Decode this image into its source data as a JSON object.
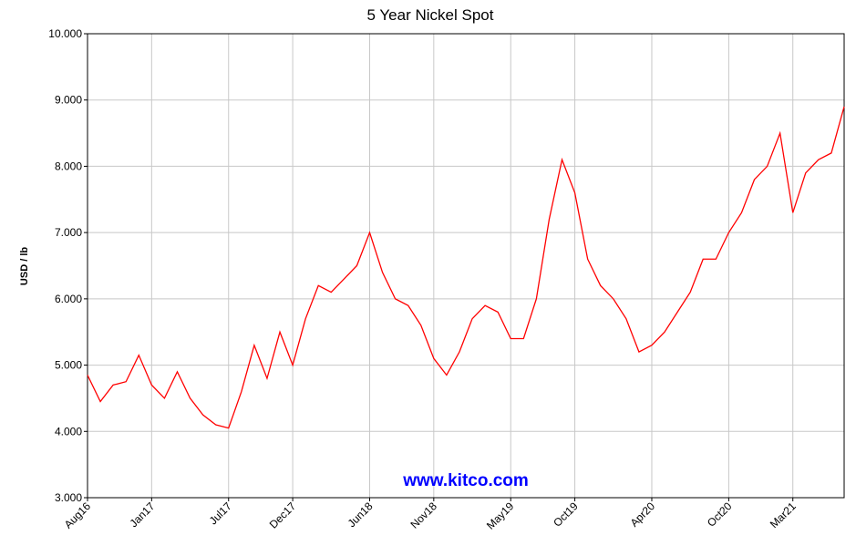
{
  "chart_data": {
    "type": "line",
    "title": "5 Year Nickel Spot",
    "y_label": "USD / lb",
    "watermark": "www.kitco.com",
    "x": [
      "2016-08",
      "2016-09",
      "2016-10",
      "2016-11",
      "2016-12",
      "2017-01",
      "2017-02",
      "2017-03",
      "2017-04",
      "2017-05",
      "2017-06",
      "2017-07",
      "2017-08",
      "2017-09",
      "2017-10",
      "2017-11",
      "2017-12",
      "2018-01",
      "2018-02",
      "2018-03",
      "2018-04",
      "2018-05",
      "2018-06",
      "2018-07",
      "2018-08",
      "2018-09",
      "2018-10",
      "2018-11",
      "2018-12",
      "2019-01",
      "2019-02",
      "2019-03",
      "2019-04",
      "2019-05",
      "2019-06",
      "2019-07",
      "2019-08",
      "2019-09",
      "2019-10",
      "2019-11",
      "2019-12",
      "2020-01",
      "2020-02",
      "2020-03",
      "2020-04",
      "2020-05",
      "2020-06",
      "2020-07",
      "2020-08",
      "2020-09",
      "2020-10",
      "2020-11",
      "2020-12",
      "2021-01",
      "2021-02",
      "2021-03",
      "2021-04",
      "2021-05",
      "2021-06",
      "2021-07"
    ],
    "series": [
      {
        "name": "Nickel",
        "color": "#ff0000",
        "values": [
          4.85,
          4.45,
          4.7,
          4.75,
          5.15,
          4.7,
          4.5,
          4.9,
          4.5,
          4.25,
          4.1,
          4.05,
          4.6,
          5.3,
          4.8,
          5.5,
          5.0,
          5.7,
          6.2,
          6.1,
          6.3,
          6.5,
          7.0,
          6.4,
          6.0,
          5.9,
          5.6,
          5.1,
          4.85,
          5.2,
          5.7,
          5.9,
          5.8,
          5.4,
          5.4,
          6.0,
          7.2,
          8.1,
          7.6,
          6.6,
          6.2,
          6.0,
          5.7,
          5.2,
          5.3,
          5.5,
          5.8,
          6.1,
          6.6,
          6.6,
          7.0,
          7.3,
          7.8,
          8.0,
          8.5,
          7.3,
          7.9,
          8.1,
          8.2,
          8.9
        ]
      }
    ],
    "xlim": [
      "2016-08",
      "2021-07"
    ],
    "xticks": [
      {
        "value": "2016-08",
        "label": "Aug16"
      },
      {
        "value": "2017-01",
        "label": "Jan17"
      },
      {
        "value": "2017-07",
        "label": "Jul17"
      },
      {
        "value": "2017-12",
        "label": "Dec17"
      },
      {
        "value": "2018-06",
        "label": "Jun18"
      },
      {
        "value": "2018-11",
        "label": "Nov18"
      },
      {
        "value": "2019-05",
        "label": "May19"
      },
      {
        "value": "2019-10",
        "label": "Oct19"
      },
      {
        "value": "2020-04",
        "label": "Apr20"
      },
      {
        "value": "2020-10",
        "label": "Oct20"
      },
      {
        "value": "2021-03",
        "label": "Mar21"
      }
    ],
    "ylim": [
      3,
      10
    ],
    "yticks": [
      {
        "value": 3,
        "label": "3.000"
      },
      {
        "value": 4,
        "label": "4.000"
      },
      {
        "value": 5,
        "label": "5.000"
      },
      {
        "value": 6,
        "label": "6.000"
      },
      {
        "value": 7,
        "label": "7.000"
      },
      {
        "value": 8,
        "label": "8.000"
      },
      {
        "value": 9,
        "label": "9.000"
      },
      {
        "value": 10,
        "label": "10.000"
      }
    ],
    "grid": true
  }
}
